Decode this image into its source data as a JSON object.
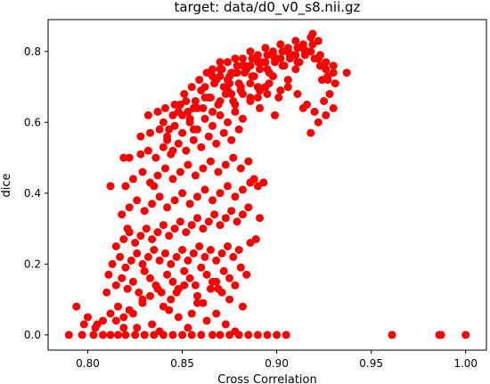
{
  "chart_data": {
    "type": "scatter",
    "title": "target: data/d0_v0_s8.nii.gz",
    "xlabel": "Cross Correlation",
    "ylabel": "dice",
    "xlim": [
      0.779,
      1.011
    ],
    "ylim": [
      -0.043,
      0.89
    ],
    "xticks": [
      "0.80",
      "0.85",
      "0.90",
      "0.95",
      "1.00"
    ],
    "xtick_values": [
      0.8,
      0.85,
      0.9,
      0.95,
      1.0
    ],
    "yticks": [
      "0.0",
      "0.2",
      "0.4",
      "0.6",
      "0.8"
    ],
    "ytick_values": [
      0.0,
      0.2,
      0.4,
      0.6,
      0.8
    ],
    "grid": false,
    "marker_color": "#ff0000",
    "x": [
      0.79,
      0.797,
      0.803,
      0.808,
      0.812,
      0.816,
      0.82,
      0.825,
      0.83,
      0.835,
      0.84,
      0.845,
      0.85,
      0.855,
      0.86,
      0.866,
      0.87,
      0.875,
      0.88,
      0.885,
      0.89,
      0.895,
      0.9,
      0.905,
      0.961,
      0.986,
      0.987,
      1.0,
      0.794,
      0.8,
      0.805,
      0.81,
      0.815,
      0.819,
      0.824,
      0.829,
      0.834,
      0.838,
      0.843,
      0.848,
      0.853,
      0.858,
      0.863,
      0.868,
      0.873,
      0.878,
      0.798,
      0.804,
      0.808,
      0.812,
      0.816,
      0.819,
      0.822,
      0.826,
      0.829,
      0.833,
      0.837,
      0.84,
      0.844,
      0.847,
      0.851,
      0.855,
      0.858,
      0.861,
      0.865,
      0.868,
      0.871,
      0.875,
      0.878,
      0.882,
      0.811,
      0.815,
      0.818,
      0.821,
      0.824,
      0.827,
      0.83,
      0.833,
      0.836,
      0.839,
      0.842,
      0.845,
      0.848,
      0.851,
      0.854,
      0.857,
      0.86,
      0.863,
      0.866,
      0.869,
      0.872,
      0.875,
      0.878,
      0.881,
      0.884,
      0.813,
      0.817,
      0.82,
      0.823,
      0.826,
      0.829,
      0.832,
      0.835,
      0.838,
      0.841,
      0.844,
      0.847,
      0.85,
      0.853,
      0.856,
      0.859,
      0.862,
      0.865,
      0.868,
      0.871,
      0.874,
      0.877,
      0.88,
      0.886,
      0.889,
      0.815,
      0.819,
      0.822,
      0.825,
      0.828,
      0.831,
      0.834,
      0.837,
      0.84,
      0.843,
      0.846,
      0.849,
      0.852,
      0.855,
      0.858,
      0.861,
      0.864,
      0.867,
      0.87,
      0.873,
      0.876,
      0.879,
      0.882,
      0.885,
      0.891,
      0.818,
      0.822,
      0.826,
      0.83,
      0.834,
      0.838,
      0.842,
      0.846,
      0.85,
      0.854,
      0.858,
      0.862,
      0.866,
      0.87,
      0.874,
      0.878,
      0.882,
      0.886,
      0.89,
      0.82,
      0.824,
      0.829,
      0.833,
      0.837,
      0.841,
      0.845,
      0.849,
      0.853,
      0.857,
      0.861,
      0.865,
      0.869,
      0.873,
      0.877,
      0.881,
      0.885,
      0.812,
      0.822,
      0.828,
      0.832,
      0.836,
      0.84,
      0.844,
      0.848,
      0.852,
      0.856,
      0.86,
      0.864,
      0.868,
      0.872,
      0.876,
      0.88,
      0.886,
      0.819,
      0.828,
      0.833,
      0.838,
      0.842,
      0.846,
      0.85,
      0.854,
      0.858,
      0.862,
      0.866,
      0.87,
      0.874,
      0.878,
      0.882,
      0.888,
      0.891,
      0.893,
      0.899,
      0.821,
      0.832,
      0.837,
      0.841,
      0.845,
      0.849,
      0.853,
      0.857,
      0.861,
      0.865,
      0.869,
      0.873,
      0.877,
      0.881,
      0.886,
      0.89,
      0.895,
      0.835,
      0.84,
      0.843,
      0.846,
      0.85,
      0.854,
      0.858,
      0.862,
      0.866,
      0.87,
      0.874,
      0.878,
      0.882,
      0.886,
      0.89,
      0.894,
      0.898,
      0.902,
      0.906,
      0.91,
      0.914,
      0.918,
      0.922,
      0.926,
      0.842,
      0.848,
      0.852,
      0.856,
      0.86,
      0.864,
      0.868,
      0.872,
      0.876,
      0.88,
      0.884,
      0.888,
      0.892,
      0.896,
      0.9,
      0.904,
      0.908,
      0.912,
      0.916,
      0.92,
      0.924,
      0.928,
      0.845,
      0.851,
      0.855,
      0.859,
      0.863,
      0.867,
      0.871,
      0.875,
      0.879,
      0.883,
      0.887,
      0.891,
      0.895,
      0.899,
      0.903,
      0.907,
      0.911,
      0.915,
      0.919,
      0.923,
      0.927,
      0.931,
      0.856,
      0.862,
      0.866,
      0.87,
      0.874,
      0.878,
      0.882,
      0.886,
      0.89,
      0.894,
      0.898,
      0.902,
      0.906,
      0.91,
      0.914,
      0.918,
      0.922,
      0.926,
      0.93,
      0.937,
      0.866,
      0.87,
      0.874,
      0.878,
      0.882,
      0.886,
      0.89,
      0.894,
      0.898,
      0.902,
      0.906,
      0.91,
      0.914,
      0.918,
      0.922,
      0.926,
      0.93,
      0.87,
      0.875,
      0.879,
      0.883,
      0.887,
      0.891,
      0.895,
      0.899,
      0.903,
      0.907,
      0.911,
      0.915,
      0.919,
      0.923,
      0.927,
      0.876,
      0.881,
      0.886,
      0.891,
      0.896,
      0.901,
      0.906,
      0.911,
      0.916,
      0.92,
      0.925,
      0.93
    ],
    "y": [
      0.0,
      0.0,
      0.0,
      0.0,
      0.0,
      0.0,
      0.0,
      0.0,
      0.0,
      0.0,
      0.0,
      0.0,
      0.0,
      0.0,
      0.0,
      0.0,
      0.0,
      0.0,
      0.0,
      0.0,
      0.0,
      0.0,
      0.0,
      0.0,
      0.0,
      0.0,
      0.0,
      0.0,
      0.08,
      0.05,
      0.03,
      0.12,
      0.04,
      0.02,
      0.06,
      0.1,
      0.03,
      0.01,
      0.07,
      0.05,
      0.02,
      0.09,
      0.04,
      0.06,
      0.03,
      0.01,
      0.03,
      0.02,
      0.04,
      0.06,
      0.08,
      0.05,
      0.07,
      0.02,
      0.09,
      0.11,
      0.13,
      0.08,
      0.1,
      0.12,
      0.14,
      0.06,
      0.11,
      0.09,
      0.13,
      0.15,
      0.12,
      0.1,
      0.14,
      0.08,
      0.17,
      0.14,
      0.16,
      0.13,
      0.15,
      0.12,
      0.18,
      0.16,
      0.14,
      0.12,
      0.17,
      0.15,
      0.13,
      0.18,
      0.16,
      0.14,
      0.19,
      0.17,
      0.15,
      0.13,
      0.18,
      0.16,
      0.14,
      0.19,
      0.17,
      0.2,
      0.22,
      0.19,
      0.21,
      0.23,
      0.2,
      0.22,
      0.24,
      0.21,
      0.23,
      0.2,
      0.22,
      0.24,
      0.21,
      0.23,
      0.25,
      0.22,
      0.24,
      0.21,
      0.23,
      0.25,
      0.22,
      0.24,
      0.26,
      0.27,
      0.25,
      0.27,
      0.29,
      0.26,
      0.28,
      0.3,
      0.27,
      0.29,
      0.31,
      0.28,
      0.3,
      0.32,
      0.29,
      0.31,
      0.33,
      0.3,
      0.32,
      0.34,
      0.31,
      0.33,
      0.35,
      0.32,
      0.34,
      0.36,
      0.33,
      0.34,
      0.36,
      0.38,
      0.35,
      0.37,
      0.39,
      0.36,
      0.38,
      0.4,
      0.37,
      0.39,
      0.41,
      0.38,
      0.4,
      0.42,
      0.39,
      0.41,
      0.43,
      0.42,
      0.42,
      0.44,
      0.46,
      0.43,
      0.45,
      0.47,
      0.44,
      0.46,
      0.48,
      0.45,
      0.47,
      0.49,
      0.46,
      0.48,
      0.5,
      0.47,
      0.49,
      0.42,
      0.5,
      0.51,
      0.52,
      0.5,
      0.53,
      0.51,
      0.54,
      0.52,
      0.55,
      0.53,
      0.56,
      0.54,
      0.57,
      0.55,
      0.58,
      0.43,
      0.5,
      0.56,
      0.57,
      0.58,
      0.56,
      0.59,
      0.57,
      0.6,
      0.58,
      0.61,
      0.59,
      0.62,
      0.6,
      0.63,
      0.61,
      0.44,
      0.64,
      0.43,
      0.62,
      0.3,
      0.62,
      0.63,
      0.64,
      0.62,
      0.65,
      0.63,
      0.66,
      0.64,
      0.67,
      0.65,
      0.68,
      0.66,
      0.69,
      0.67,
      0.7,
      0.68,
      0.42,
      0.6,
      0.58,
      0.65,
      0.62,
      0.61,
      0.64,
      0.67,
      0.63,
      0.66,
      0.69,
      0.65,
      0.68,
      0.71,
      0.67,
      0.7,
      0.73,
      0.69,
      0.72,
      0.75,
      0.64,
      0.57,
      0.6,
      0.62,
      0.55,
      0.63,
      0.66,
      0.64,
      0.69,
      0.67,
      0.72,
      0.7,
      0.74,
      0.71,
      0.75,
      0.73,
      0.77,
      0.74,
      0.78,
      0.76,
      0.79,
      0.77,
      0.8,
      0.78,
      0.72,
      0.68,
      0.52,
      0.68,
      0.7,
      0.72,
      0.74,
      0.71,
      0.75,
      0.73,
      0.76,
      0.74,
      0.78,
      0.75,
      0.79,
      0.77,
      0.8,
      0.78,
      0.81,
      0.79,
      0.82,
      0.76,
      0.73,
      0.71,
      0.58,
      0.7,
      0.73,
      0.75,
      0.77,
      0.74,
      0.78,
      0.76,
      0.79,
      0.77,
      0.8,
      0.78,
      0.81,
      0.79,
      0.82,
      0.8,
      0.83,
      0.77,
      0.74,
      0.74,
      0.75,
      0.77,
      0.72,
      0.78,
      0.76,
      0.8,
      0.77,
      0.81,
      0.79,
      0.82,
      0.8,
      0.83,
      0.81,
      0.84,
      0.78,
      0.75,
      0.76,
      0.73,
      0.71,
      0.74,
      0.76,
      0.73,
      0.77,
      0.75,
      0.78,
      0.76,
      0.79,
      0.77,
      0.8,
      0.85,
      0.79,
      0.72,
      0.68,
      0.7,
      0.66,
      0.69,
      0.71,
      0.67,
      0.7,
      0.68,
      0.65,
      0.63,
      0.66,
      0.64
    ]
  }
}
